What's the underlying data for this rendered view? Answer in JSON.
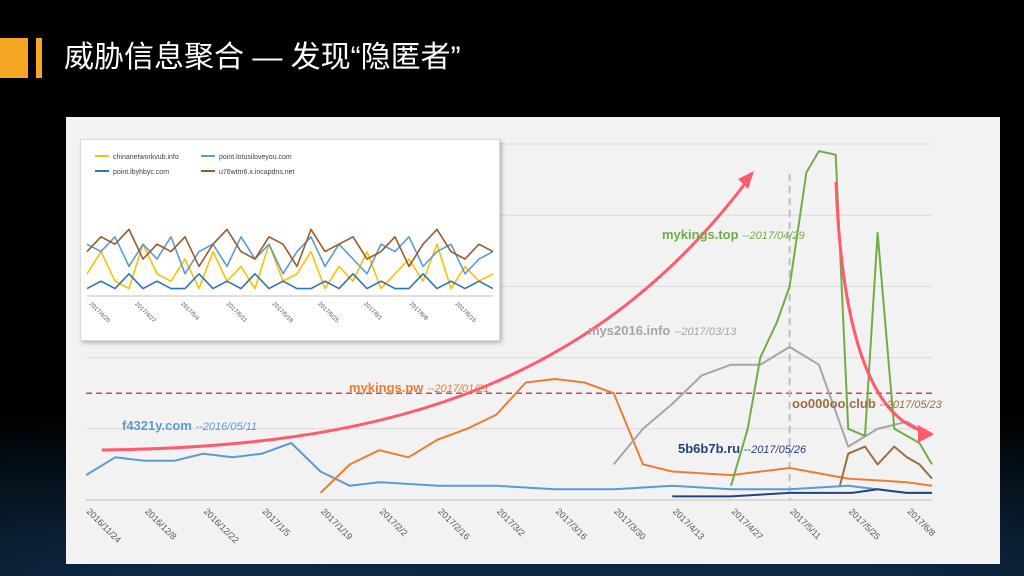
{
  "slide": {
    "title": "威胁信息聚合 — 发现“隐匿者”",
    "accent_color": "#f5a623"
  },
  "chart_data": [
    {
      "type": "line",
      "title": "",
      "x_tick_labels": [
        "2016/11/24",
        "2016/12/8",
        "2016/12/22",
        "2017/1/5",
        "2017/1/19",
        "2017/2/2",
        "2017/2/16",
        "2017/3/2",
        "2017/3/16",
        "2017/3/30",
        "2017/4/13",
        "2017/4/27",
        "2017/5/11",
        "2017/5/25",
        "2017/6/8"
      ],
      "x_range": [
        "2016/11/24",
        "2017/6/14"
      ],
      "y_range": [
        0,
        100
      ],
      "grid": "horizontal",
      "reference_lines": [
        {
          "type": "horizontal",
          "y": 30,
          "style": "dashed",
          "color": "#c0504d"
        },
        {
          "type": "vertical",
          "x": "2017/5/11",
          "style": "dashed",
          "color": "#bfbfbf"
        }
      ],
      "series": [
        {
          "name": "f4321y.com",
          "color": "#5b9bd5",
          "x": [
            "2016/11/24",
            "2016/12/1",
            "2016/12/8",
            "2016/12/15",
            "2016/12/22",
            "2016/12/29",
            "2017/1/5",
            "2017/1/12",
            "2017/1/19",
            "2017/1/26",
            "2017/2/2",
            "2017/2/16",
            "2017/3/2",
            "2017/3/16",
            "2017/3/30",
            "2017/4/13",
            "2017/4/27",
            "2017/5/11",
            "2017/5/25",
            "2017/6/8",
            "2017/6/14"
          ],
          "y": [
            7,
            12,
            11,
            11,
            13,
            12,
            13,
            16,
            8,
            4,
            5,
            4,
            4,
            3,
            3,
            4,
            3,
            3,
            4,
            2,
            2
          ]
        },
        {
          "name": "mykings.pw",
          "color": "#ed7d31",
          "x": [
            "2017/1/19",
            "2017/1/26",
            "2017/2/2",
            "2017/2/9",
            "2017/2/16",
            "2017/2/23",
            "2017/3/2",
            "2017/3/9",
            "2017/3/16",
            "2017/3/23",
            "2017/3/30",
            "2017/4/6",
            "2017/4/13",
            "2017/4/27",
            "2017/5/11",
            "2017/5/25",
            "2017/6/8",
            "2017/6/14"
          ],
          "y": [
            2,
            10,
            14,
            12,
            17,
            20,
            24,
            33,
            34,
            33,
            30,
            10,
            8,
            7,
            9,
            6,
            5,
            4
          ]
        },
        {
          "name": "mys2016.info",
          "color": "#a5a5a5",
          "x": [
            "2017/3/30",
            "2017/4/6",
            "2017/4/13",
            "2017/4/20",
            "2017/4/27",
            "2017/5/4",
            "2017/5/11",
            "2017/5/18",
            "2017/5/25",
            "2017/6/1",
            "2017/6/8",
            "2017/6/14"
          ],
          "y": [
            10,
            20,
            27,
            35,
            38,
            38,
            43,
            38,
            15,
            20,
            22,
            18
          ]
        },
        {
          "name": "mykings.top",
          "color": "#70ad47",
          "x": [
            "2017/4/27",
            "2017/5/1",
            "2017/5/4",
            "2017/5/8",
            "2017/5/11",
            "2017/5/15",
            "2017/5/18",
            "2017/5/22",
            "2017/5/25",
            "2017/5/29",
            "2017/6/1",
            "2017/6/5",
            "2017/6/8",
            "2017/6/11",
            "2017/6/14"
          ],
          "y": [
            4,
            20,
            40,
            50,
            60,
            92,
            98,
            97,
            20,
            18,
            75,
            20,
            18,
            16,
            10
          ]
        },
        {
          "name": "oo000oo.club",
          "color": "#9c6f3f",
          "x": [
            "2017/5/23",
            "2017/5/25",
            "2017/5/29",
            "2017/6/1",
            "2017/6/5",
            "2017/6/8",
            "2017/6/11",
            "2017/6/14"
          ],
          "y": [
            4,
            13,
            15,
            10,
            15,
            12,
            10,
            6
          ]
        },
        {
          "name": "5b6b7b.ru",
          "color": "#264478",
          "x": [
            "2017/4/13",
            "2017/4/27",
            "2017/5/11",
            "2017/5/26",
            "2017/6/1",
            "2017/6/8",
            "2017/6/14"
          ],
          "y": [
            1,
            1,
            2,
            2,
            3,
            2,
            2
          ]
        }
      ],
      "annotations": [
        {
          "name": "f4321y.com",
          "date": "--2016/05/11",
          "color": "#5b9bd5"
        },
        {
          "name": "mykings.pw",
          "date": "--2017/01/21",
          "color": "#ed7d31"
        },
        {
          "name": "mys2016.info",
          "date": "--2017/03/13",
          "color": "#a5a5a5"
        },
        {
          "name": "mykings.top",
          "date": "--2017/04/29",
          "color": "#70ad47"
        },
        {
          "name": "oo000oo.club",
          "date": "--2017/05/23",
          "color": "#9c6f3f"
        },
        {
          "name": "5b6b7b.ru",
          "date": "--2017/05/26",
          "color": "#264478"
        }
      ]
    },
    {
      "type": "line",
      "title": "",
      "legend_position": "top-left",
      "x_tick_labels": [
        "2017/4/20",
        "2017/4/27",
        "2017/5/4",
        "2017/5/11",
        "2017/5/18",
        "2017/5/25",
        "2017/6/1",
        "2017/6/8",
        "2017/6/15"
      ],
      "series": [
        {
          "name": "chinanetworkvub.info",
          "color": "#ffc000",
          "y": [
            3,
            6,
            2,
            1,
            7,
            3,
            2,
            5,
            1,
            6,
            2,
            4,
            1,
            7,
            2,
            3,
            6,
            1,
            4,
            2,
            6,
            1,
            3,
            5,
            2,
            7,
            1,
            4,
            2,
            3
          ]
        },
        {
          "name": "point.lotusiloveyou.com",
          "color": "#5b9bd5",
          "y": [
            7,
            6,
            8,
            4,
            7,
            5,
            8,
            3,
            6,
            7,
            4,
            8,
            5,
            7,
            3,
            6,
            8,
            4,
            7,
            5,
            3,
            7,
            6,
            8,
            4,
            6,
            7,
            3,
            5,
            6
          ]
        },
        {
          "name": "point.lbyhbyc.com",
          "color": "#2e75b6",
          "y": [
            1,
            2,
            1,
            3,
            1,
            2,
            1,
            1,
            3,
            1,
            2,
            1,
            3,
            1,
            2,
            1,
            1,
            2,
            1,
            3,
            1,
            2,
            1,
            1,
            3,
            1,
            2,
            1,
            2,
            1
          ]
        },
        {
          "name": "u76wtm6.x.incapdns.net",
          "color": "#9c5a2b",
          "y": [
            6,
            8,
            7,
            9,
            5,
            7,
            6,
            8,
            4,
            7,
            9,
            6,
            5,
            8,
            7,
            4,
            9,
            6,
            7,
            8,
            5,
            6,
            8,
            4,
            7,
            9,
            6,
            5,
            7,
            6
          ]
        }
      ]
    }
  ]
}
